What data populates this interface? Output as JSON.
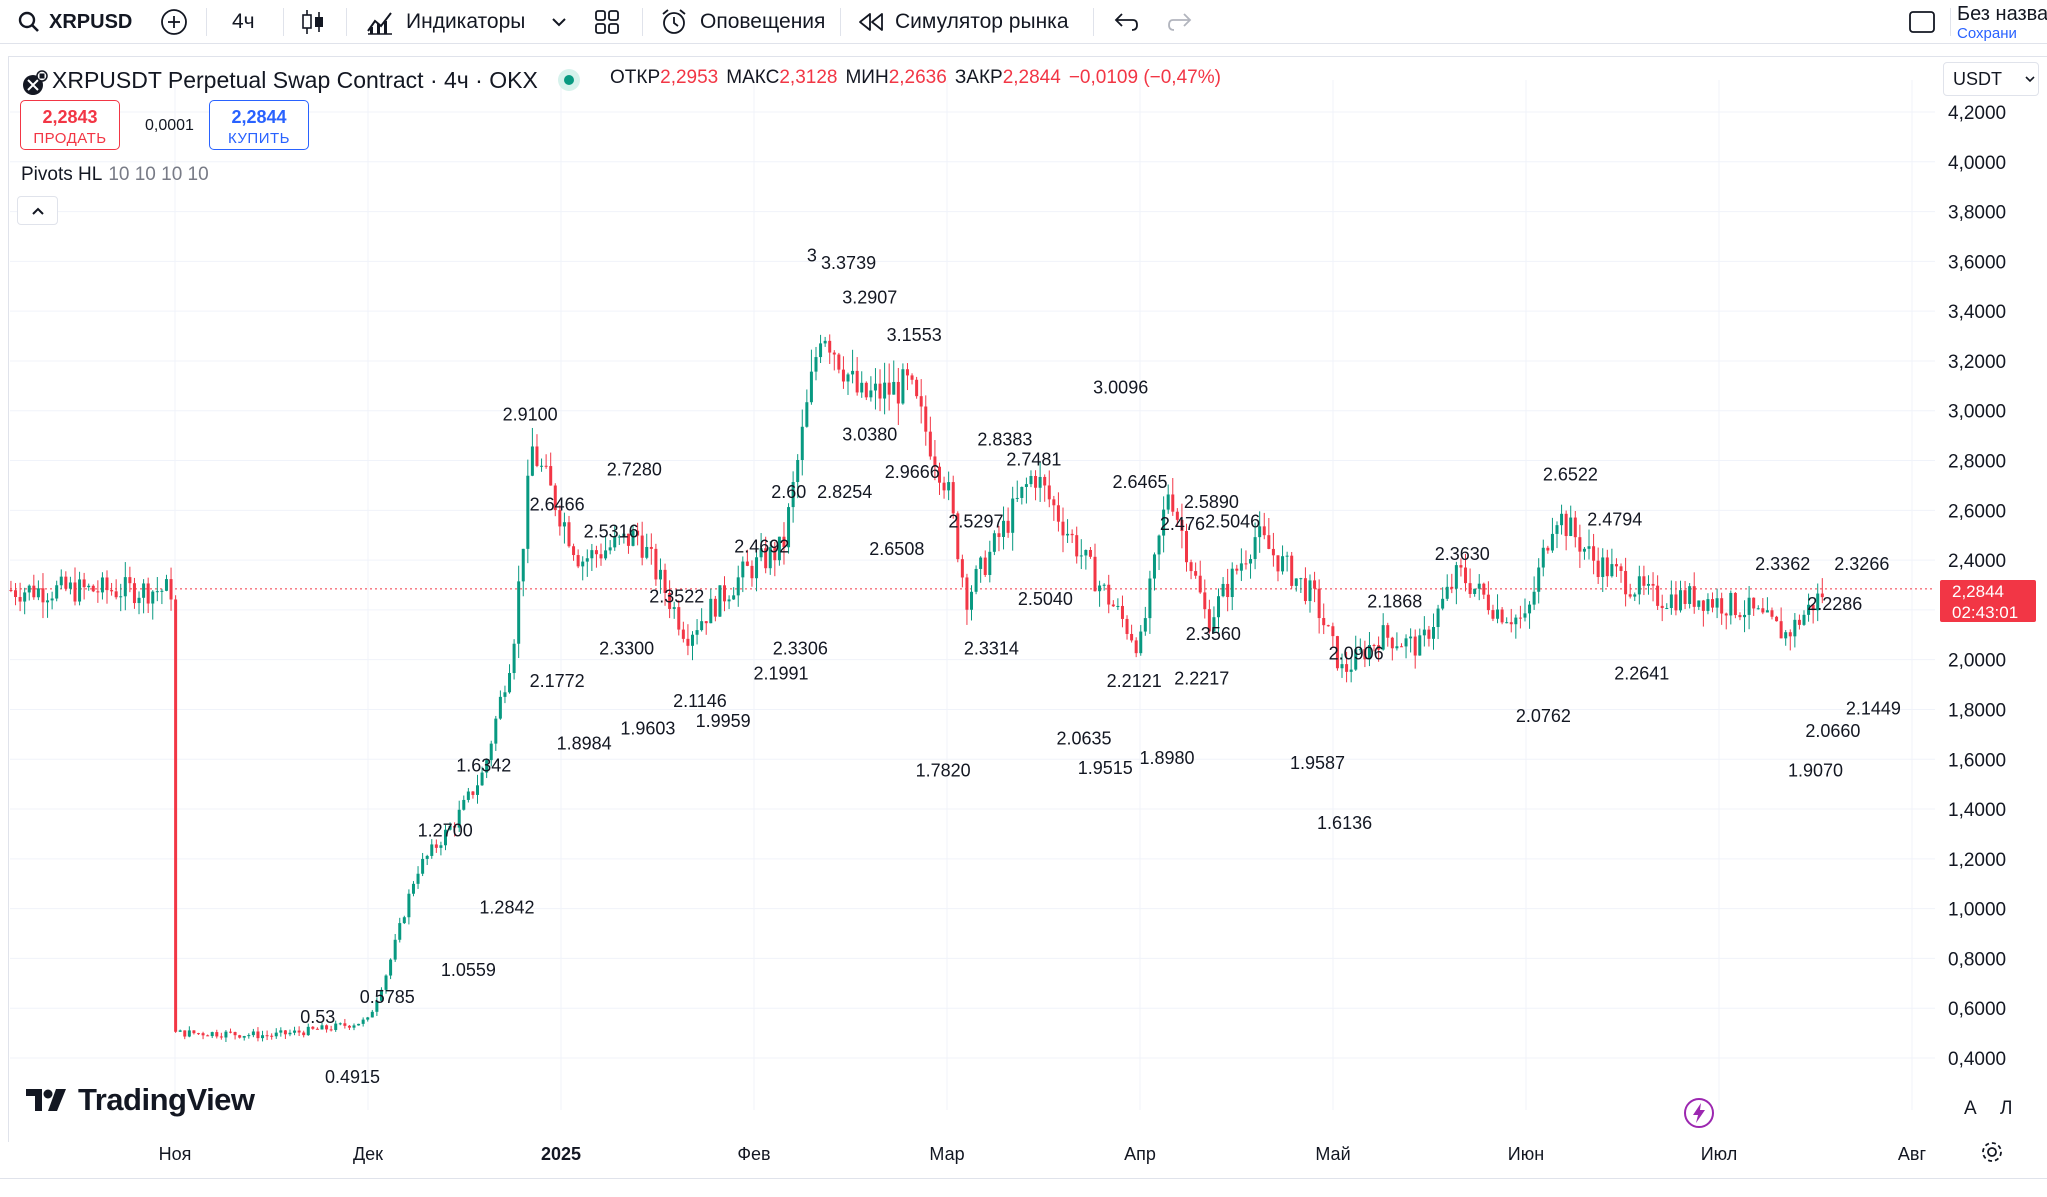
{
  "toolbar": {
    "symbol": "XRPUSD",
    "interval": "4ч",
    "indicators_label": "Индикаторы",
    "alerts_label": "Оповещения",
    "replay_label": "Симулятор рынка",
    "layout_name": "Без назва",
    "save_label": "Сохрани"
  },
  "legend": {
    "title": "XRPUSDT Perpetual Swap Contract · 4ч · OKX",
    "open_label": "ОТКР",
    "open_value": "2,2953",
    "high_label": "МАКС",
    "high_value": "2,3128",
    "low_label": "МИН",
    "low_value": "2,2636",
    "close_label": "ЗАКР",
    "close_value": "2,2844",
    "change": "−0,0109 (−0,47%)"
  },
  "trade": {
    "sell_price": "2,2843",
    "sell_label": "ПРОДАТЬ",
    "spread": "0,0001",
    "buy_price": "2,2844",
    "buy_label": "КУПИТЬ"
  },
  "indicator": {
    "name": "Pivots HL",
    "params": "10 10 10 10"
  },
  "currency": "USDT",
  "price_tag": {
    "value": "2,2844",
    "countdown": "02:43:01"
  },
  "brand": "TradingView",
  "scale_buttons": {
    "auto": "A",
    "log": "Л"
  },
  "colors": {
    "up": "#089981",
    "down": "#f23645",
    "accent": "#2962ff"
  },
  "chart_data": {
    "type": "candlestick",
    "y_axis_ticks": [
      "4,2000",
      "4,0000",
      "3,8000",
      "3,6000",
      "3,4000",
      "3,2000",
      "3,0000",
      "2,8000",
      "2,6000",
      "2,4000",
      "2,2000",
      "2,0000",
      "1,8000",
      "1,6000",
      "1,4000",
      "1,2000",
      "1,0000",
      "0,8000",
      "0,6000",
      "0,4000"
    ],
    "ylim": [
      0.3,
      4.3
    ],
    "x_axis_ticks": [
      "Ноя",
      "Дек",
      "2025",
      "Фев",
      "Мар",
      "Апр",
      "Май",
      "Июн",
      "Июл",
      "Авг"
    ],
    "current_price": 2.2844,
    "trend": [
      {
        "x": 0.0,
        "y": 0.5
      },
      {
        "x": 0.2,
        "y": 0.5
      },
      {
        "x": 0.5,
        "y": 0.49
      },
      {
        "x": 0.8,
        "y": 0.52
      },
      {
        "x": 1.0,
        "y": 0.55
      },
      {
        "x": 1.1,
        "y": 0.75
      },
      {
        "x": 1.25,
        "y": 1.15
      },
      {
        "x": 1.45,
        "y": 1.35
      },
      {
        "x": 1.6,
        "y": 1.55
      },
      {
        "x": 1.75,
        "y": 2.05
      },
      {
        "x": 1.85,
        "y": 2.85
      },
      {
        "x": 2.1,
        "y": 2.4
      },
      {
        "x": 2.4,
        "y": 2.5
      },
      {
        "x": 2.65,
        "y": 2.1
      },
      {
        "x": 2.95,
        "y": 2.35
      },
      {
        "x": 3.15,
        "y": 2.45
      },
      {
        "x": 3.35,
        "y": 3.35
      },
      {
        "x": 3.55,
        "y": 3.05
      },
      {
        "x": 3.8,
        "y": 3.1
      },
      {
        "x": 4.0,
        "y": 2.7
      },
      {
        "x": 4.1,
        "y": 2.25
      },
      {
        "x": 4.45,
        "y": 2.75
      },
      {
        "x": 4.75,
        "y": 2.35
      },
      {
        "x": 5.0,
        "y": 2.05
      },
      {
        "x": 5.15,
        "y": 2.7
      },
      {
        "x": 5.35,
        "y": 2.15
      },
      {
        "x": 5.6,
        "y": 2.5
      },
      {
        "x": 5.9,
        "y": 2.25
      },
      {
        "x": 6.05,
        "y": 1.95
      },
      {
        "x": 6.25,
        "y": 2.1
      },
      {
        "x": 6.45,
        "y": 2.05
      },
      {
        "x": 6.65,
        "y": 2.35
      },
      {
        "x": 6.85,
        "y": 2.2
      },
      {
        "x": 7.0,
        "y": 2.15
      },
      {
        "x": 7.15,
        "y": 2.6
      },
      {
        "x": 7.35,
        "y": 2.4
      },
      {
        "x": 7.65,
        "y": 2.25
      },
      {
        "x": 7.9,
        "y": 2.25
      },
      {
        "x": 8.15,
        "y": 2.2
      },
      {
        "x": 8.35,
        "y": 2.1
      },
      {
        "x": 8.55,
        "y": 2.28
      }
    ],
    "pivots": [
      {
        "label": "3",
        "x": 3.3,
        "y": 3.6
      },
      {
        "label": "3.3739",
        "x": 3.49,
        "y": 3.57
      },
      {
        "label": "3.2907",
        "x": 3.6,
        "y": 3.43
      },
      {
        "label": "3.1553",
        "x": 3.83,
        "y": 3.28
      },
      {
        "label": "2.9100",
        "x": 1.84,
        "y": 2.96
      },
      {
        "label": "2.7280",
        "x": 2.38,
        "y": 2.74
      },
      {
        "label": "2.6466",
        "x": 1.98,
        "y": 2.6
      },
      {
        "label": "2.5316",
        "x": 2.26,
        "y": 2.49
      },
      {
        "label": "2.3522",
        "x": 2.6,
        "y": 2.23
      },
      {
        "label": "2.4692",
        "x": 3.04,
        "y": 2.43
      },
      {
        "label": "2.60",
        "x": 3.18,
        "y": 2.65
      },
      {
        "label": "2.8254",
        "x": 3.47,
        "y": 2.65
      },
      {
        "label": "2.6508",
        "x": 3.74,
        "y": 2.42
      },
      {
        "label": "3.0380",
        "x": 3.6,
        "y": 2.88
      },
      {
        "label": "2.9666",
        "x": 3.82,
        "y": 2.73
      },
      {
        "label": "2.3300",
        "x": 2.34,
        "y": 2.02
      },
      {
        "label": "2.1772",
        "x": 1.98,
        "y": 1.89
      },
      {
        "label": "2.1146",
        "x": 2.72,
        "y": 1.81
      },
      {
        "label": "2.1991",
        "x": 3.14,
        "y": 1.92
      },
      {
        "label": "2.3306",
        "x": 3.24,
        "y": 2.02
      },
      {
        "label": "1.8984",
        "x": 2.12,
        "y": 1.64
      },
      {
        "label": "1.9603",
        "x": 2.45,
        "y": 1.7
      },
      {
        "label": "1.9959",
        "x": 2.84,
        "y": 1.73
      },
      {
        "label": "1.6342",
        "x": 1.6,
        "y": 1.55
      },
      {
        "label": "1.2700",
        "x": 1.4,
        "y": 1.29
      },
      {
        "label": "1.2842",
        "x": 1.72,
        "y": 0.98
      },
      {
        "label": "1.0559",
        "x": 1.52,
        "y": 0.73
      },
      {
        "label": "0.5785",
        "x": 1.1,
        "y": 0.62
      },
      {
        "label": "0.53",
        "x": 0.74,
        "y": 0.54
      },
      {
        "label": "0.4915",
        "x": 0.92,
        "y": 0.3
      },
      {
        "label": "2.8383",
        "x": 4.3,
        "y": 2.86
      },
      {
        "label": "2.7481",
        "x": 4.45,
        "y": 2.78
      },
      {
        "label": "2.5297",
        "x": 4.15,
        "y": 2.53
      },
      {
        "label": "2.5040",
        "x": 4.51,
        "y": 2.22
      },
      {
        "label": "2.3314",
        "x": 4.23,
        "y": 2.02
      },
      {
        "label": "1.7820",
        "x": 3.98,
        "y": 1.53
      },
      {
        "label": "3.0096",
        "x": 4.9,
        "y": 3.07
      },
      {
        "label": "2.6465",
        "x": 5.0,
        "y": 2.69
      },
      {
        "label": "2.476",
        "x": 5.22,
        "y": 2.52
      },
      {
        "label": "2.5890",
        "x": 5.37,
        "y": 2.61
      },
      {
        "label": "2.5046",
        "x": 5.48,
        "y": 2.53
      },
      {
        "label": "2.3560",
        "x": 5.38,
        "y": 2.08
      },
      {
        "label": "2.2217",
        "x": 5.32,
        "y": 1.9
      },
      {
        "label": "2.2121",
        "x": 4.97,
        "y": 1.89
      },
      {
        "label": "2.0635",
        "x": 4.71,
        "y": 1.66
      },
      {
        "label": "1.9515",
        "x": 4.82,
        "y": 1.54
      },
      {
        "label": "1.8980",
        "x": 5.14,
        "y": 1.58
      },
      {
        "label": "2.1868",
        "x": 6.32,
        "y": 2.21
      },
      {
        "label": "2.0906",
        "x": 6.12,
        "y": 2.0
      },
      {
        "label": "1.9587",
        "x": 5.92,
        "y": 1.56
      },
      {
        "label": "1.6136",
        "x": 6.06,
        "y": 1.32
      },
      {
        "label": "2.3630",
        "x": 6.67,
        "y": 2.4
      },
      {
        "label": "2.0762",
        "x": 7.09,
        "y": 1.75
      },
      {
        "label": "2.6522",
        "x": 7.23,
        "y": 2.72
      },
      {
        "label": "2.4794",
        "x": 7.46,
        "y": 2.54
      },
      {
        "label": "2.2641",
        "x": 7.6,
        "y": 1.92
      },
      {
        "label": "2.3362",
        "x": 8.33,
        "y": 2.36
      },
      {
        "label": "2.3266",
        "x": 8.74,
        "y": 2.36
      },
      {
        "label": "2.2286",
        "x": 8.6,
        "y": 2.2
      },
      {
        "label": "2.1449",
        "x": 8.8,
        "y": 1.78
      },
      {
        "label": "2.0660",
        "x": 8.59,
        "y": 1.69
      },
      {
        "label": "1.9070",
        "x": 8.5,
        "y": 1.53
      }
    ]
  }
}
